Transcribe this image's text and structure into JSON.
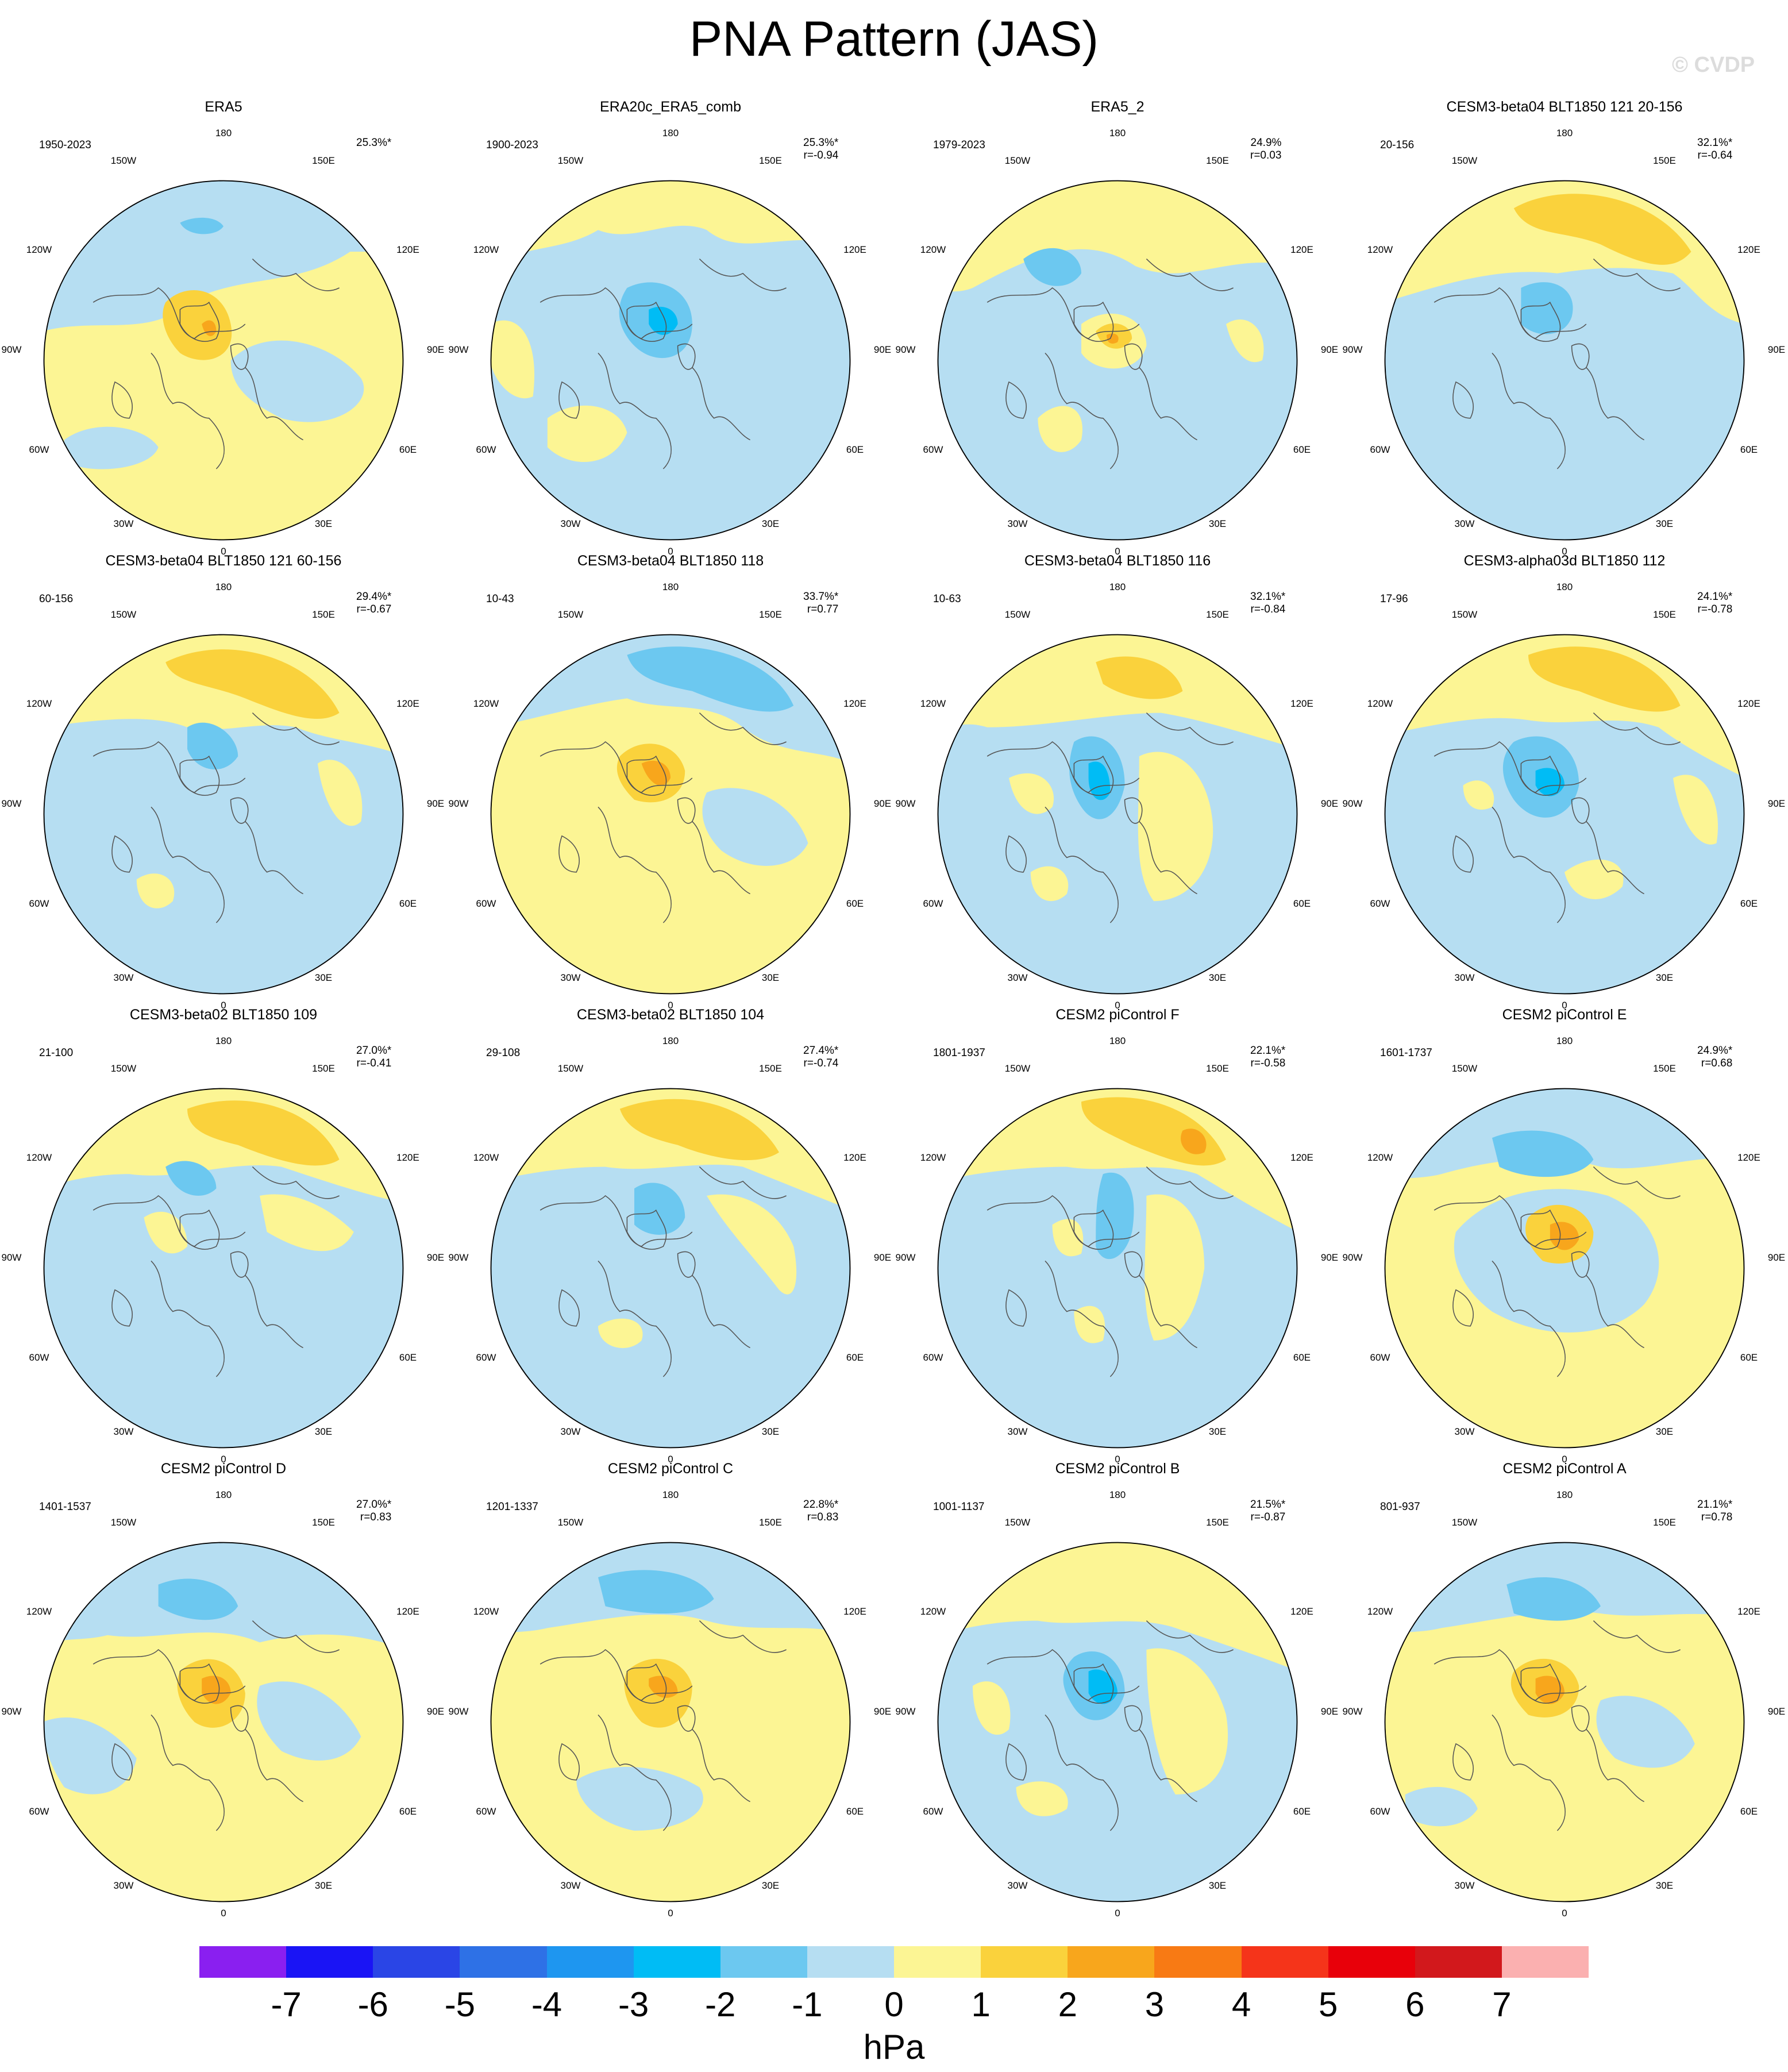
{
  "title": "PNA Pattern (JAS)",
  "credit": "© CVDP",
  "lon_labels": [
    "180",
    "150E",
    "120E",
    "90E",
    "60E",
    "30E",
    "0",
    "30W",
    "60W",
    "90W",
    "120W",
    "150W"
  ],
  "legend": {
    "unit": "hPa",
    "ticks": [
      "-7",
      "-6",
      "-5",
      "-4",
      "-3",
      "-2",
      "-1",
      "0",
      "1",
      "2",
      "3",
      "4",
      "5",
      "6",
      "7"
    ],
    "colors": [
      "#8a1ff0",
      "#1a14f5",
      "#2a45e6",
      "#2e71e6",
      "#1e96f0",
      "#00bcf5",
      "#6cc8f0",
      "#b6def2",
      "#fcf594",
      "#fad23c",
      "#f8a61c",
      "#f87a14",
      "#f5341a",
      "#e8000a",
      "#d2181c",
      "#fbb0b0"
    ]
  },
  "panels": [
    {
      "title": "ERA5",
      "years": "1950-2023",
      "pct": "25.3%*",
      "r": ""
    },
    {
      "title": "ERA20c_ERA5_comb",
      "years": "1900-2023",
      "pct": "25.3%*",
      "r": "r=-0.94"
    },
    {
      "title": "ERA5_2",
      "years": "1979-2023",
      "pct": "24.9%",
      "r": "r=0.03"
    },
    {
      "title": "CESM3-beta04 BLT1850 121 20-156",
      "years": "20-156",
      "pct": "32.1%*",
      "r": "r=-0.64"
    },
    {
      "title": "CESM3-beta04 BLT1850 121 60-156",
      "years": "60-156",
      "pct": "29.4%*",
      "r": "r=-0.67"
    },
    {
      "title": "CESM3-beta04 BLT1850 118",
      "years": "10-43",
      "pct": "33.7%*",
      "r": "r=0.77"
    },
    {
      "title": "CESM3-beta04 BLT1850 116",
      "years": "10-63",
      "pct": "32.1%*",
      "r": "r=-0.84"
    },
    {
      "title": "CESM3-alpha03d BLT1850 112",
      "years": "17-96",
      "pct": "24.1%*",
      "r": "r=-0.78"
    },
    {
      "title": "CESM3-beta02 BLT1850 109",
      "years": "21-100",
      "pct": "27.0%*",
      "r": "r=-0.41"
    },
    {
      "title": "CESM3-beta02 BLT1850 104",
      "years": "29-108",
      "pct": "27.4%*",
      "r": "r=-0.74"
    },
    {
      "title": "CESM2 piControl F",
      "years": "1801-1937",
      "pct": "22.1%*",
      "r": "r=-0.58"
    },
    {
      "title": "CESM2 piControl E",
      "years": "1601-1737",
      "pct": "24.9%*",
      "r": "r=0.68"
    },
    {
      "title": "CESM2 piControl D",
      "years": "1401-1537",
      "pct": "27.0%*",
      "r": "r=0.83"
    },
    {
      "title": "CESM2 piControl C",
      "years": "1201-1337",
      "pct": "22.8%*",
      "r": "r=0.83"
    },
    {
      "title": "CESM2 piControl B",
      "years": "1001-1137",
      "pct": "21.5%*",
      "r": "r=-0.87"
    },
    {
      "title": "CESM2 piControl A",
      "years": "801-937",
      "pct": "21.1%*",
      "r": "r=0.78"
    }
  ]
}
